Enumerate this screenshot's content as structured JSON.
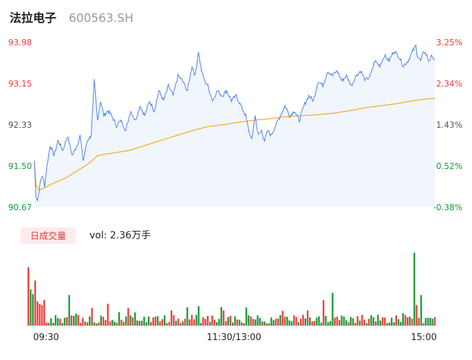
{
  "stock": {
    "name": "法拉电子",
    "code": "600563.SH"
  },
  "colors": {
    "up": "#e8403a",
    "down": "#1a9a3a",
    "price_line": "#4a7fe0",
    "avg_line": "#f0a820",
    "area_fill": "#f1f5fc",
    "badge_bg": "#fdecec"
  },
  "volume_panel": {
    "badge_label": "日成交量",
    "vol_label": "vol: 2.36万手"
  },
  "chart_data": {
    "type": "line",
    "x_ticks": [
      "09:30",
      "11:30/13:00",
      "15:00"
    ],
    "price_axis": {
      "labels": [
        "93.98",
        "93.15",
        "92.33",
        "91.50",
        "90.67"
      ],
      "ylim": [
        90.67,
        93.98
      ]
    },
    "pct_axis": {
      "labels": [
        "3.25%",
        "2.34%",
        "1.43%",
        "0.52%",
        "-0.38%"
      ]
    },
    "label_colors": [
      "up",
      "up",
      "neutral",
      "down",
      "down"
    ],
    "price_keypoints": [
      [
        0,
        91.6
      ],
      [
        2,
        90.9
      ],
      [
        4,
        90.8
      ],
      [
        6,
        91.0
      ],
      [
        8,
        91.2
      ],
      [
        10,
        91.3
      ],
      [
        13,
        91.1
      ],
      [
        16,
        91.5
      ],
      [
        20,
        91.9
      ],
      [
        25,
        91.7
      ],
      [
        30,
        92.0
      ],
      [
        36,
        91.8
      ],
      [
        42,
        92.1
      ],
      [
        48,
        91.7
      ],
      [
        54,
        91.9
      ],
      [
        58,
        92.1
      ],
      [
        62,
        91.6
      ],
      [
        67,
        92.0
      ],
      [
        72,
        92.1
      ],
      [
        76,
        93.2
      ],
      [
        80,
        92.4
      ],
      [
        84,
        92.8
      ],
      [
        88,
        92.5
      ],
      [
        93,
        92.6
      ],
      [
        98,
        92.5
      ],
      [
        104,
        92.3
      ],
      [
        110,
        92.4
      ],
      [
        116,
        92.2
      ],
      [
        122,
        92.6
      ],
      [
        128,
        92.4
      ],
      [
        134,
        92.7
      ],
      [
        140,
        92.5
      ],
      [
        146,
        92.8
      ],
      [
        152,
        92.6
      ],
      [
        158,
        93.0
      ],
      [
        164,
        92.8
      ],
      [
        170,
        93.1
      ],
      [
        176,
        92.9
      ],
      [
        182,
        93.3
      ],
      [
        188,
        93.2
      ],
      [
        194,
        93.0
      ],
      [
        200,
        93.5
      ],
      [
        204,
        93.3
      ],
      [
        208,
        93.8
      ],
      [
        212,
        93.4
      ],
      [
        216,
        93.2
      ],
      [
        220,
        93.1
      ],
      [
        226,
        92.8
      ],
      [
        232,
        93.0
      ],
      [
        238,
        92.9
      ],
      [
        244,
        93.0
      ],
      [
        250,
        92.8
      ],
      [
        256,
        92.9
      ],
      [
        262,
        92.7
      ],
      [
        268,
        92.5
      ],
      [
        272,
        92.2
      ],
      [
        276,
        92.0
      ],
      [
        278,
        92.3
      ],
      [
        280,
        92.5
      ],
      [
        284,
        92.1
      ],
      [
        288,
        92.2
      ],
      [
        292,
        92.0
      ],
      [
        296,
        92.2
      ],
      [
        300,
        92.1
      ],
      [
        306,
        92.3
      ],
      [
        312,
        92.5
      ],
      [
        318,
        92.7
      ],
      [
        324,
        92.5
      ],
      [
        330,
        92.6
      ],
      [
        336,
        92.4
      ],
      [
        342,
        92.7
      ],
      [
        348,
        92.9
      ],
      [
        354,
        92.8
      ],
      [
        360,
        93.2
      ],
      [
        366,
        93.1
      ],
      [
        372,
        93.4
      ],
      [
        378,
        93.3
      ],
      [
        384,
        93.4
      ],
      [
        390,
        93.2
      ],
      [
        396,
        93.3
      ],
      [
        402,
        93.1
      ],
      [
        408,
        93.3
      ],
      [
        414,
        93.4
      ],
      [
        420,
        93.2
      ],
      [
        426,
        93.3
      ],
      [
        432,
        93.6
      ],
      [
        438,
        93.5
      ],
      [
        444,
        93.7
      ],
      [
        450,
        93.6
      ],
      [
        456,
        93.8
      ],
      [
        462,
        93.7
      ],
      [
        468,
        93.5
      ],
      [
        474,
        93.6
      ],
      [
        480,
        93.8
      ],
      [
        484,
        93.9
      ],
      [
        486,
        93.7
      ],
      [
        490,
        93.6
      ],
      [
        494,
        93.8
      ],
      [
        498,
        93.7
      ],
      [
        500,
        93.6
      ],
      [
        505,
        93.7
      ],
      [
        508,
        93.6
      ]
    ],
    "avg_keypoints": [
      [
        0,
        91.6
      ],
      [
        2,
        91.1
      ],
      [
        6,
        91.0
      ],
      [
        12,
        91.05
      ],
      [
        25,
        91.15
      ],
      [
        40,
        91.25
      ],
      [
        60,
        91.45
      ],
      [
        70,
        91.55
      ],
      [
        80,
        91.7
      ],
      [
        100,
        91.75
      ],
      [
        120,
        91.8
      ],
      [
        140,
        91.9
      ],
      [
        160,
        92.0
      ],
      [
        180,
        92.1
      ],
      [
        200,
        92.2
      ],
      [
        220,
        92.28
      ],
      [
        240,
        92.32
      ],
      [
        260,
        92.37
      ],
      [
        280,
        92.41
      ],
      [
        300,
        92.44
      ],
      [
        320,
        92.48
      ],
      [
        340,
        92.5
      ],
      [
        360,
        92.52
      ],
      [
        380,
        92.55
      ],
      [
        400,
        92.6
      ],
      [
        420,
        92.66
      ],
      [
        440,
        92.7
      ],
      [
        460,
        92.74
      ],
      [
        480,
        92.8
      ],
      [
        500,
        92.84
      ],
      [
        508,
        92.85
      ]
    ]
  }
}
